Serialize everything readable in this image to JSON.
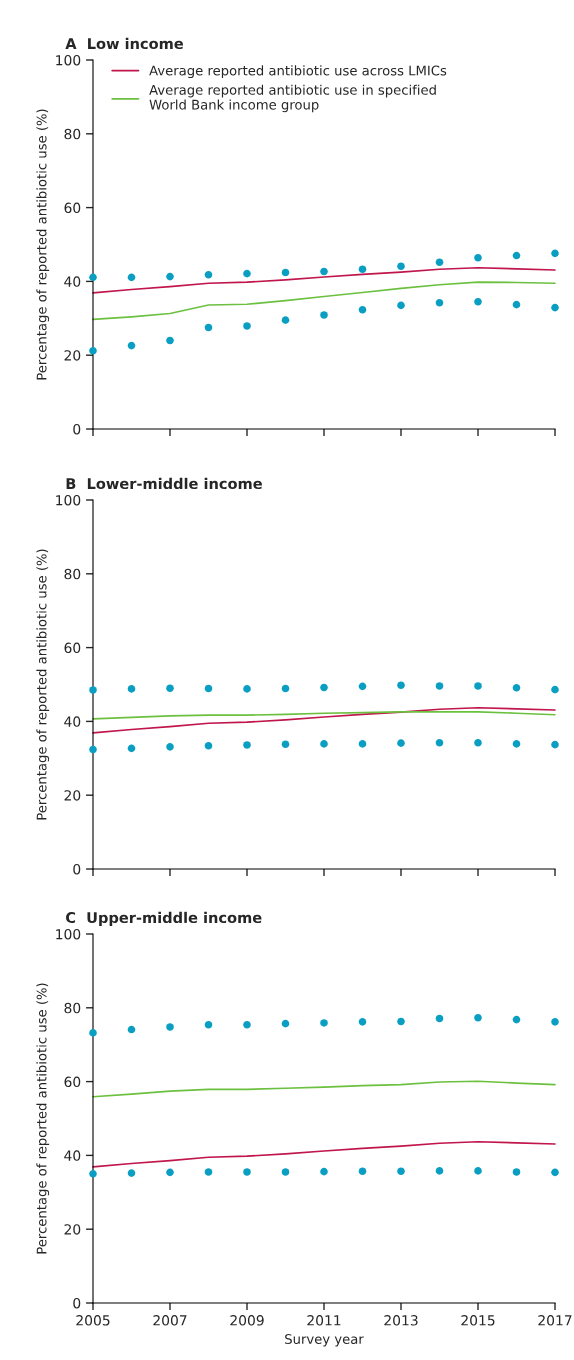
{
  "chart_data": [
    {
      "type": "line",
      "title": "A  Low income",
      "ylabel": "Percentage of reported antibiotic use (%)",
      "x": [
        2005,
        2006,
        2007,
        2008,
        2009,
        2010,
        2011,
        2012,
        2013,
        2014,
        2015,
        2016,
        2017
      ],
      "xlim": [
        2005,
        2017
      ],
      "xticks": [
        {
          "value": 2005,
          "label": null
        },
        {
          "value": 2007,
          "label": null
        },
        {
          "value": 2009,
          "label": null
        },
        {
          "value": 2011,
          "label": null
        },
        {
          "value": 2013,
          "label": null
        },
        {
          "value": 2015,
          "label": null
        },
        {
          "value": 2017,
          "label": null
        }
      ],
      "ylim": [
        0,
        100
      ],
      "yticks": [
        0,
        20,
        40,
        60,
        80,
        100
      ],
      "tick_labels": "y",
      "grid": false,
      "legend": "top left",
      "series": [
        {
          "name": "Average reported antibiotic use across LMICs",
          "color": "#c0164c",
          "values": [
            36.9,
            37.8,
            38.6,
            39.5,
            39.8,
            40.4,
            41.2,
            41.9,
            42.5,
            43.3,
            43.7,
            43.4,
            43.1
          ]
        },
        {
          "name": "Average reported antibiotic use in specified\nWorld Bank income group",
          "color": "#6cc040",
          "values": [
            29.7,
            30.4,
            31.3,
            33.6,
            33.8,
            34.8,
            35.9,
            37.0,
            38.1,
            39.1,
            39.8,
            39.7,
            39.5
          ]
        },
        {
          "type": "scatter",
          "marker": "circle",
          "color": "#0a9fc2",
          "values": [
            41.1,
            41.1,
            41.3,
            41.8,
            42.1,
            42.4,
            42.7,
            43.3,
            44.1,
            45.2,
            46.4,
            47.0,
            47.6
          ]
        },
        {
          "type": "scatter",
          "marker": "circle",
          "color": "#0a9fc2",
          "values": [
            21.2,
            22.6,
            24.0,
            27.5,
            27.9,
            29.5,
            30.9,
            32.3,
            33.5,
            34.2,
            34.5,
            33.7,
            32.9
          ]
        }
      ]
    },
    {
      "type": "line",
      "title": "B  Lower-middle income",
      "ylabel": "Percentage of reported antibiotic use (%)",
      "x": [
        2005,
        2006,
        2007,
        2008,
        2009,
        2010,
        2011,
        2012,
        2013,
        2014,
        2015,
        2016,
        2017
      ],
      "xlim": [
        2005,
        2017
      ],
      "xticks": [
        {
          "value": 2005,
          "label": null
        },
        {
          "value": 2007,
          "label": null
        },
        {
          "value": 2009,
          "label": null
        },
        {
          "value": 2011,
          "label": null
        },
        {
          "value": 2013,
          "label": null
        },
        {
          "value": 2015,
          "label": null
        },
        {
          "value": 2017,
          "label": null
        }
      ],
      "ylim": [
        0,
        100
      ],
      "yticks": [
        0,
        20,
        40,
        60,
        80,
        100
      ],
      "tick_labels": "y",
      "grid": false,
      "series": [
        {
          "color": "#c0164c",
          "values": [
            36.9,
            37.8,
            38.6,
            39.5,
            39.8,
            40.4,
            41.2,
            41.9,
            42.5,
            43.3,
            43.7,
            43.4,
            43.1
          ]
        },
        {
          "color": "#6cc040",
          "values": [
            40.7,
            41.1,
            41.5,
            41.7,
            41.7,
            41.9,
            42.2,
            42.4,
            42.6,
            42.6,
            42.6,
            42.2,
            41.8
          ]
        },
        {
          "type": "scatter",
          "marker": "circle",
          "color": "#0a9fc2",
          "values": [
            48.5,
            48.8,
            49.0,
            48.9,
            48.8,
            48.9,
            49.2,
            49.5,
            49.8,
            49.6,
            49.6,
            49.1,
            48.6
          ]
        },
        {
          "type": "scatter",
          "marker": "circle",
          "color": "#0a9fc2",
          "values": [
            32.4,
            32.7,
            33.1,
            33.4,
            33.6,
            33.8,
            33.9,
            33.9,
            34.1,
            34.2,
            34.2,
            33.9,
            33.7
          ]
        }
      ]
    },
    {
      "type": "line",
      "title": "C  Upper-middle income",
      "ylabel": "Percentage of reported antibiotic use (%)",
      "xlabel": "Survey year",
      "x": [
        2005,
        2006,
        2007,
        2008,
        2009,
        2010,
        2011,
        2012,
        2013,
        2014,
        2015,
        2016,
        2017
      ],
      "xlim": [
        2005,
        2017
      ],
      "xticks": [
        2005,
        2007,
        2009,
        2011,
        2013,
        2015,
        2017
      ],
      "ylim": [
        0,
        100
      ],
      "yticks": [
        0,
        20,
        40,
        60,
        80,
        100
      ],
      "grid": false,
      "series": [
        {
          "color": "#c0164c",
          "values": [
            36.9,
            37.8,
            38.6,
            39.5,
            39.8,
            40.4,
            41.2,
            41.9,
            42.5,
            43.3,
            43.7,
            43.4,
            43.1
          ]
        },
        {
          "color": "#6cc040",
          "values": [
            55.9,
            56.6,
            57.4,
            57.9,
            57.9,
            58.2,
            58.5,
            58.9,
            59.2,
            59.9,
            60.1,
            59.6,
            59.2
          ]
        },
        {
          "type": "scatter",
          "marker": "circle",
          "color": "#0a9fc2",
          "values": [
            73.2,
            74.1,
            74.8,
            75.4,
            75.4,
            75.7,
            75.9,
            76.2,
            76.3,
            77.1,
            77.3,
            76.8,
            76.2
          ]
        },
        {
          "type": "scatter",
          "marker": "circle",
          "color": "#0a9fc2",
          "values": [
            35.0,
            35.2,
            35.4,
            35.5,
            35.5,
            35.5,
            35.6,
            35.7,
            35.7,
            35.8,
            35.8,
            35.5,
            35.4
          ]
        }
      ]
    }
  ]
}
